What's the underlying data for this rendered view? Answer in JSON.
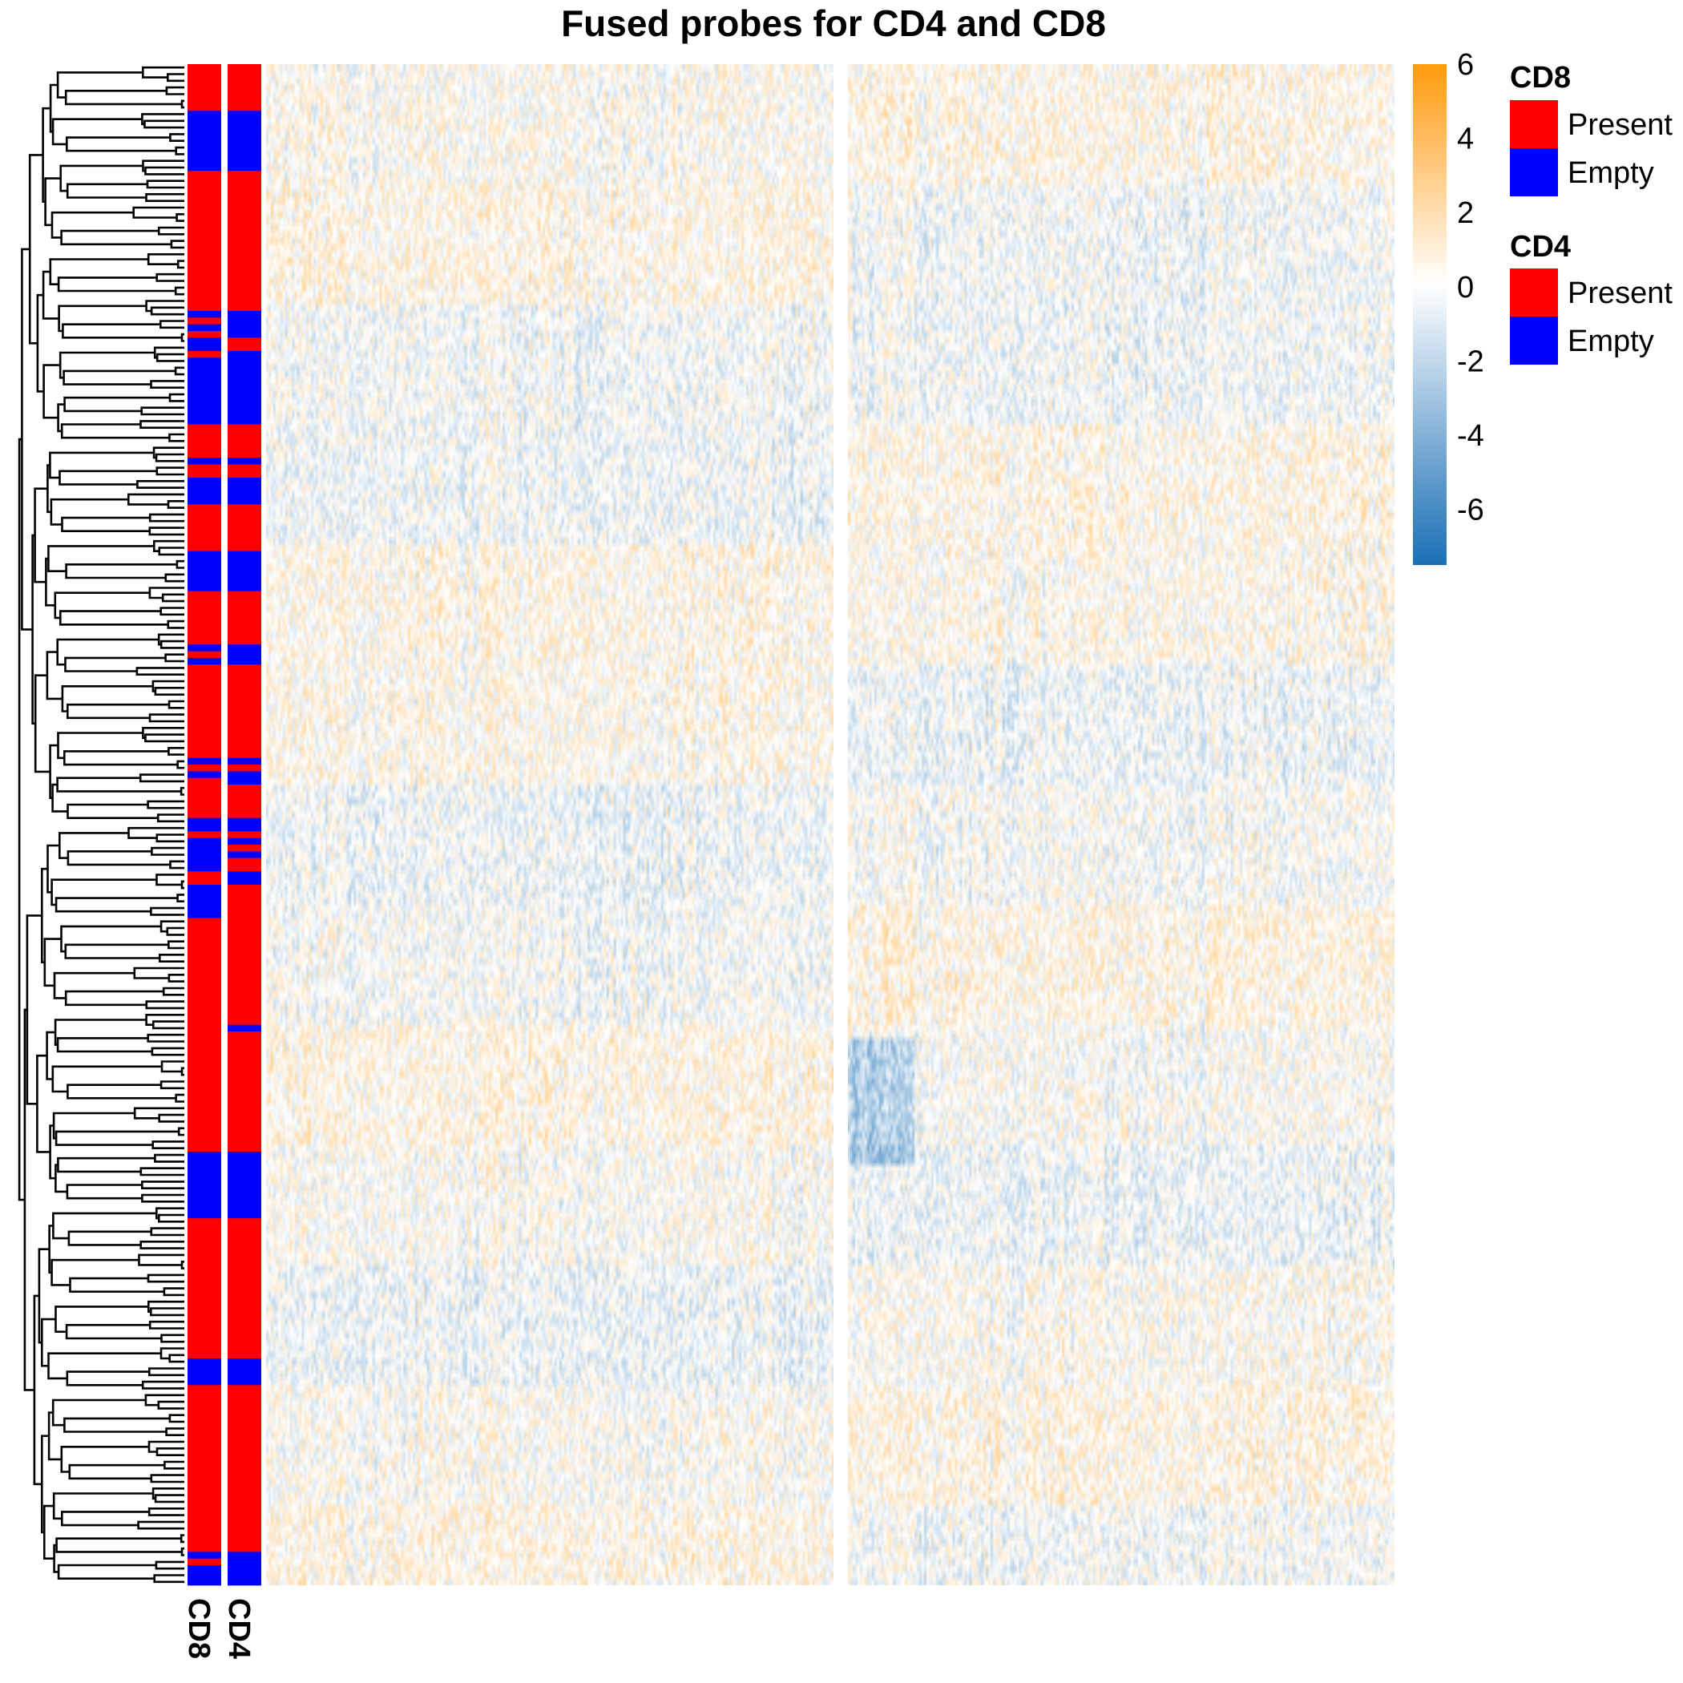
{
  "chart_data": {
    "type": "heatmap",
    "title": "Fused probes for CD4 and CD8",
    "color_scale": {
      "ticks": [
        "6",
        "4",
        "2",
        "0",
        "-2",
        "-4",
        "-6"
      ],
      "min": -7.5,
      "max": 6,
      "low_color": "#1a6fb5",
      "mid_color": "#ffffff",
      "high_color": "#ff9a0c"
    },
    "row_annotations": [
      {
        "name": "CD8",
        "label": "CD8"
      },
      {
        "name": "CD4",
        "label": "CD4"
      }
    ],
    "legends": [
      {
        "title": "CD8",
        "levels": [
          {
            "label": "Present",
            "color": "#ff0000"
          },
          {
            "label": "Empty",
            "color": "#0000ff"
          }
        ]
      },
      {
        "title": "CD4",
        "levels": [
          {
            "label": "Present",
            "color": "#ff0000"
          },
          {
            "label": "Empty",
            "color": "#0000ff"
          }
        ]
      }
    ],
    "row_count": 228,
    "column_splits": 2,
    "cd8_segments": [
      {
        "rows": [
          0,
          7
        ],
        "value": "Present"
      },
      {
        "rows": [
          7,
          16
        ],
        "value": "Empty"
      },
      {
        "rows": [
          16,
          37
        ],
        "value": "Present"
      },
      {
        "rows": [
          37,
          38
        ],
        "value": "Empty"
      },
      {
        "rows": [
          38,
          39
        ],
        "value": "Present"
      },
      {
        "rows": [
          39,
          40
        ],
        "value": "Empty"
      },
      {
        "rows": [
          40,
          41
        ],
        "value": "Present"
      },
      {
        "rows": [
          41,
          43
        ],
        "value": "Empty"
      },
      {
        "rows": [
          43,
          44
        ],
        "value": "Present"
      },
      {
        "rows": [
          44,
          54
        ],
        "value": "Empty"
      },
      {
        "rows": [
          54,
          59
        ],
        "value": "Present"
      },
      {
        "rows": [
          59,
          60
        ],
        "value": "Empty"
      },
      {
        "rows": [
          60,
          62
        ],
        "value": "Present"
      },
      {
        "rows": [
          62,
          66
        ],
        "value": "Empty"
      },
      {
        "rows": [
          66,
          73
        ],
        "value": "Present"
      },
      {
        "rows": [
          73,
          79
        ],
        "value": "Empty"
      },
      {
        "rows": [
          79,
          87
        ],
        "value": "Present"
      },
      {
        "rows": [
          87,
          88
        ],
        "value": "Empty"
      },
      {
        "rows": [
          88,
          89
        ],
        "value": "Present"
      },
      {
        "rows": [
          89,
          90
        ],
        "value": "Empty"
      },
      {
        "rows": [
          90,
          104
        ],
        "value": "Present"
      },
      {
        "rows": [
          104,
          105
        ],
        "value": "Empty"
      },
      {
        "rows": [
          105,
          106
        ],
        "value": "Present"
      },
      {
        "rows": [
          106,
          107
        ],
        "value": "Empty"
      },
      {
        "rows": [
          107,
          113
        ],
        "value": "Present"
      },
      {
        "rows": [
          113,
          115
        ],
        "value": "Empty"
      },
      {
        "rows": [
          115,
          116
        ],
        "value": "Present"
      },
      {
        "rows": [
          116,
          121
        ],
        "value": "Empty"
      },
      {
        "rows": [
          121,
          123
        ],
        "value": "Present"
      },
      {
        "rows": [
          123,
          128
        ],
        "value": "Empty"
      },
      {
        "rows": [
          128,
          163
        ],
        "value": "Present"
      },
      {
        "rows": [
          163,
          173
        ],
        "value": "Empty"
      },
      {
        "rows": [
          173,
          194
        ],
        "value": "Present"
      },
      {
        "rows": [
          194,
          198
        ],
        "value": "Empty"
      },
      {
        "rows": [
          198,
          223
        ],
        "value": "Present"
      },
      {
        "rows": [
          223,
          224
        ],
        "value": "Empty"
      },
      {
        "rows": [
          224,
          225
        ],
        "value": "Present"
      },
      {
        "rows": [
          225,
          228
        ],
        "value": "Empty"
      }
    ],
    "cd4_segments": [
      {
        "rows": [
          0,
          7
        ],
        "value": "Present"
      },
      {
        "rows": [
          7,
          16
        ],
        "value": "Empty"
      },
      {
        "rows": [
          16,
          37
        ],
        "value": "Present"
      },
      {
        "rows": [
          37,
          41
        ],
        "value": "Empty"
      },
      {
        "rows": [
          41,
          43
        ],
        "value": "Present"
      },
      {
        "rows": [
          43,
          54
        ],
        "value": "Empty"
      },
      {
        "rows": [
          54,
          59
        ],
        "value": "Present"
      },
      {
        "rows": [
          59,
          60
        ],
        "value": "Empty"
      },
      {
        "rows": [
          60,
          62
        ],
        "value": "Present"
      },
      {
        "rows": [
          62,
          66
        ],
        "value": "Empty"
      },
      {
        "rows": [
          66,
          73
        ],
        "value": "Present"
      },
      {
        "rows": [
          73,
          79
        ],
        "value": "Empty"
      },
      {
        "rows": [
          79,
          87
        ],
        "value": "Present"
      },
      {
        "rows": [
          87,
          90
        ],
        "value": "Empty"
      },
      {
        "rows": [
          90,
          104
        ],
        "value": "Present"
      },
      {
        "rows": [
          104,
          105
        ],
        "value": "Empty"
      },
      {
        "rows": [
          105,
          106
        ],
        "value": "Present"
      },
      {
        "rows": [
          106,
          108
        ],
        "value": "Empty"
      },
      {
        "rows": [
          108,
          113
        ],
        "value": "Present"
      },
      {
        "rows": [
          113,
          115
        ],
        "value": "Empty"
      },
      {
        "rows": [
          115,
          116
        ],
        "value": "Present"
      },
      {
        "rows": [
          116,
          117
        ],
        "value": "Empty"
      },
      {
        "rows": [
          117,
          118
        ],
        "value": "Present"
      },
      {
        "rows": [
          118,
          119
        ],
        "value": "Empty"
      },
      {
        "rows": [
          119,
          121
        ],
        "value": "Present"
      },
      {
        "rows": [
          121,
          123
        ],
        "value": "Empty"
      },
      {
        "rows": [
          123,
          144
        ],
        "value": "Present"
      },
      {
        "rows": [
          144,
          145
        ],
        "value": "Empty"
      },
      {
        "rows": [
          145,
          163
        ],
        "value": "Present"
      },
      {
        "rows": [
          163,
          173
        ],
        "value": "Empty"
      },
      {
        "rows": [
          173,
          194
        ],
        "value": "Present"
      },
      {
        "rows": [
          194,
          198
        ],
        "value": "Empty"
      },
      {
        "rows": [
          198,
          223
        ],
        "value": "Present"
      },
      {
        "rows": [
          223,
          228
        ],
        "value": "Empty"
      }
    ]
  }
}
